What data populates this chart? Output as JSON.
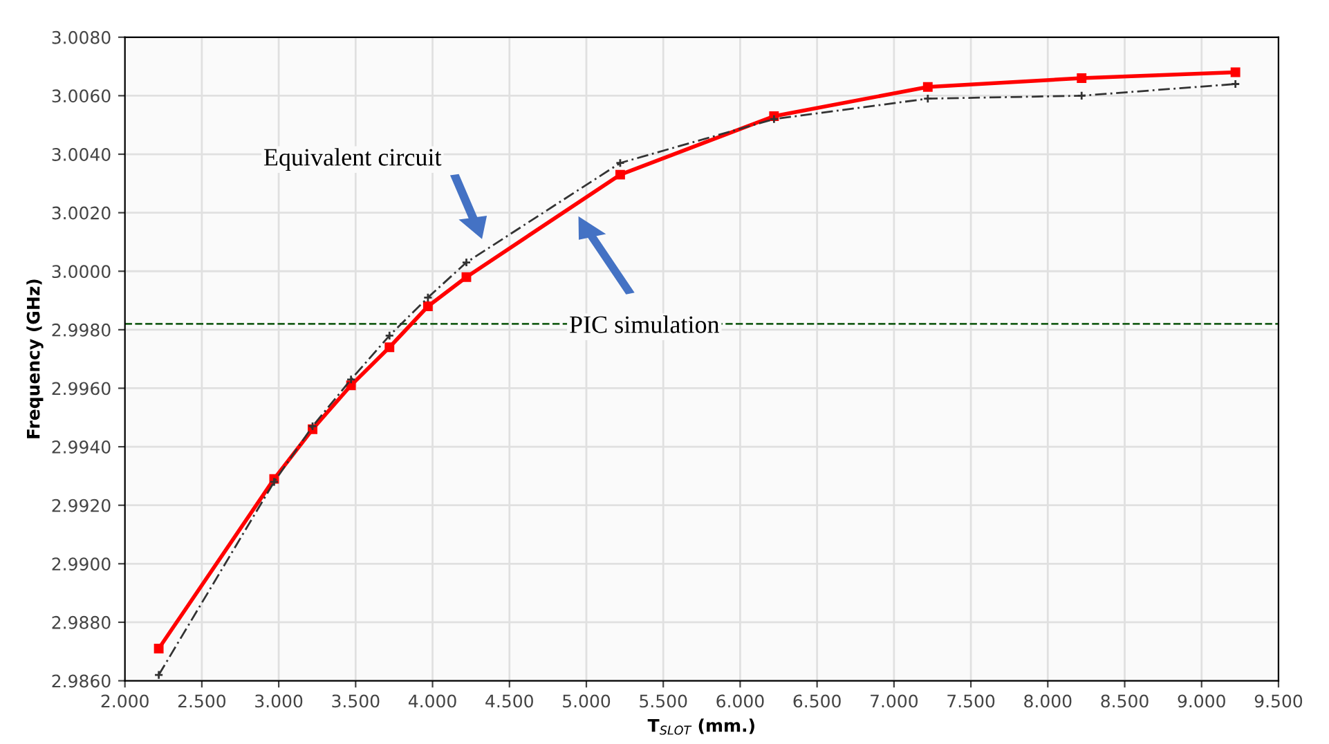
{
  "chart_data": {
    "type": "line",
    "xlabel": "T$_{SLOT}$ (mm.)",
    "ylabel": "Frequency (GHz)",
    "xlim": [
      2.0,
      9.5
    ],
    "xticks": [
      {
        "value": 2.0,
        "label": "2.000"
      },
      {
        "value": 2.5,
        "label": "2.500"
      },
      {
        "value": 3.0,
        "label": "3.000"
      },
      {
        "value": 3.5,
        "label": "3.500"
      },
      {
        "value": 4.0,
        "label": "4.000"
      },
      {
        "value": 4.5,
        "label": "4.500"
      },
      {
        "value": 5.0,
        "label": "5.000"
      },
      {
        "value": 5.5,
        "label": "5.500"
      },
      {
        "value": 6.0,
        "label": "6.000"
      },
      {
        "value": 6.5,
        "label": "6.500"
      },
      {
        "value": 7.0,
        "label": "7.000"
      },
      {
        "value": 7.5,
        "label": "7.500"
      },
      {
        "value": 8.0,
        "label": "8.000"
      },
      {
        "value": 8.5,
        "label": "8.500"
      },
      {
        "value": 9.0,
        "label": "9.000"
      },
      {
        "value": 9.5,
        "label": "9.500"
      }
    ],
    "ylim": [
      2.986,
      3.008
    ],
    "yticks": [
      {
        "value": 2.986,
        "label": "2.9860"
      },
      {
        "value": 2.988,
        "label": "2.9880"
      },
      {
        "value": 2.99,
        "label": "2.9900"
      },
      {
        "value": 2.992,
        "label": "2.9920"
      },
      {
        "value": 2.994,
        "label": "2.9940"
      },
      {
        "value": 2.996,
        "label": "2.9960"
      },
      {
        "value": 2.998,
        "label": "2.9980"
      },
      {
        "value": 3.0,
        "label": "3.0000"
      },
      {
        "value": 3.002,
        "label": "3.0020"
      },
      {
        "value": 3.004,
        "label": "3.0040"
      },
      {
        "value": 3.006,
        "label": "3.0060"
      },
      {
        "value": 3.008,
        "label": "3.0080"
      }
    ],
    "x": [
      2.22,
      2.97,
      3.22,
      3.47,
      3.72,
      3.97,
      4.22,
      5.22,
      6.22,
      7.22,
      8.22,
      9.22
    ],
    "series": [
      {
        "color": "#ff0000",
        "marker": "square",
        "line_style": "solid",
        "values": [
          2.9871,
          2.9929,
          2.9946,
          2.9961,
          2.9974,
          2.9988,
          2.9998,
          3.0033,
          3.0053,
          3.0063,
          3.0066,
          3.0068
        ]
      },
      {
        "color": "#333333",
        "marker": "cross",
        "line_style": "dashed",
        "values": [
          2.9862,
          2.9928,
          2.9947,
          2.9963,
          2.9978,
          2.9991,
          3.0003,
          3.0037,
          3.0052,
          3.0059,
          3.006,
          3.0064
        ]
      }
    ],
    "ref_lines": [
      {
        "axis": "y",
        "value": 2.9982,
        "color": "#1a5e1a",
        "line_style": "dashed"
      }
    ],
    "annotations": [
      "Equivalent circuit",
      "PIC simulation"
    ],
    "grid": true
  }
}
